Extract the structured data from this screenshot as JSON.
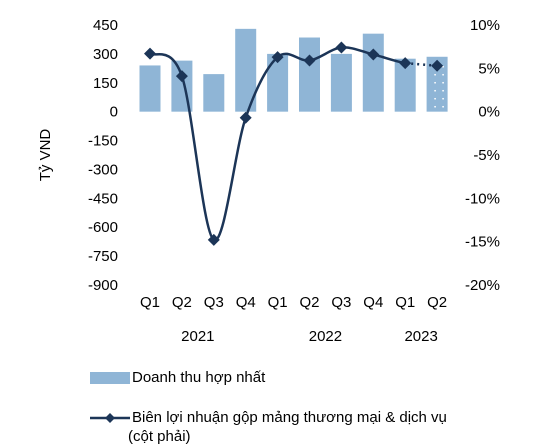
{
  "chart_data": {
    "type": "bar+line",
    "ylabel": "Tỷ VND",
    "quarters": [
      "Q1",
      "Q2",
      "Q3",
      "Q4",
      "Q1",
      "Q2",
      "Q3",
      "Q4",
      "Q1",
      "Q2"
    ],
    "years": [
      "2021",
      "2022",
      "2023"
    ],
    "left_axis": {
      "ylim": [
        -900,
        450
      ],
      "ticks": [
        "450",
        "300",
        "150",
        "0",
        "-150",
        "-300",
        "-450",
        "-600",
        "-750",
        "-900"
      ]
    },
    "right_axis": {
      "ylim": [
        -20,
        10
      ],
      "ticks": [
        "10%",
        "5%",
        "0%",
        "-5%",
        "-10%",
        "-15%",
        "-20%"
      ]
    },
    "series": [
      {
        "name": "Doanh thu hợp nhất",
        "type": "bar",
        "axis": "left",
        "color": "#8fb5d6",
        "values": [
          240,
          265,
          195,
          430,
          300,
          385,
          300,
          405,
          275,
          285
        ],
        "forecast_index": 9
      },
      {
        "name": "Biên lợi nhuận gộp mảng thương mại & dịch vụ (cột phải)",
        "type": "line",
        "axis": "right",
        "color": "#1c3557",
        "values": [
          6.7,
          4.1,
          -14.8,
          -0.7,
          6.3,
          5.9,
          7.4,
          6.6,
          5.6,
          5.3
        ],
        "forecast_index": 9
      }
    ],
    "grid": false,
    "legend_position": "bottom"
  },
  "legend": {
    "bar_label": "Doanh thu hợp nhất",
    "line_label_1": "Biên lợi nhuận gộp mảng thương mại & dịch vụ",
    "line_label_2": "(cột phải)"
  }
}
